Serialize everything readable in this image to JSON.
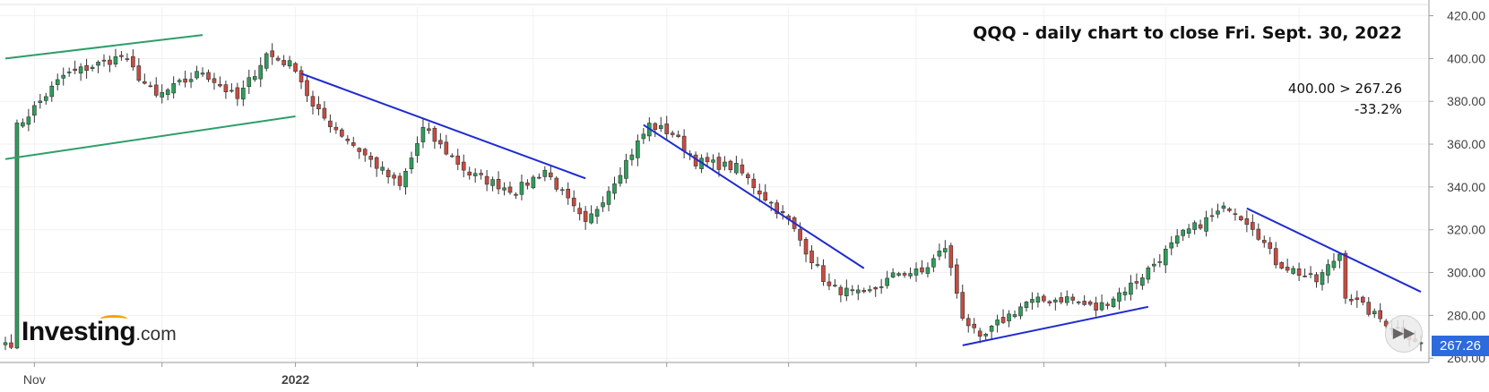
{
  "chart_data": {
    "type": "candlestick",
    "symbol": "QQQ",
    "title": "QQQ - daily chart to close Fri. Sept. 30, 2022",
    "annotations": [
      "400.00 > 267.26",
      "-33.2%"
    ],
    "y_ticks": [
      "420.00",
      "400.00",
      "380.00",
      "360.00",
      "340.00",
      "320.00",
      "300.00",
      "280.00",
      "260.00"
    ],
    "x_ticks": [
      "Nov",
      "2022"
    ],
    "ylim": [
      258,
      424
    ],
    "last_price": "267.26",
    "colors": {
      "up": "#2e9e5a",
      "down": "#c94b40",
      "upper_trendline": "#2e9e6a",
      "trendline": "#1f2bd0",
      "last_badge": "#2d6bdc"
    },
    "anchors": [
      {
        "d": "2021-10-27",
        "v": 368
      },
      {
        "d": "2021-11-08",
        "v": 392
      },
      {
        "d": "2021-11-22",
        "v": 401
      },
      {
        "d": "2021-11-30",
        "v": 382
      },
      {
        "d": "2021-12-10",
        "v": 394
      },
      {
        "d": "2021-12-20",
        "v": 381
      },
      {
        "d": "2021-12-27",
        "v": 402
      },
      {
        "d": "2022-01-03",
        "v": 396
      },
      {
        "d": "2022-01-06",
        "v": 377
      },
      {
        "d": "2022-01-27",
        "v": 340
      },
      {
        "d": "2022-02-02",
        "v": 367
      },
      {
        "d": "2022-02-14",
        "v": 346
      },
      {
        "d": "2022-02-24",
        "v": 338
      },
      {
        "d": "2022-03-03",
        "v": 348
      },
      {
        "d": "2022-03-14",
        "v": 322
      },
      {
        "d": "2022-03-29",
        "v": 369
      },
      {
        "d": "2022-04-04",
        "v": 365
      },
      {
        "d": "2022-04-08",
        "v": 352
      },
      {
        "d": "2022-04-19",
        "v": 349
      },
      {
        "d": "2022-05-02",
        "v": 324
      },
      {
        "d": "2022-05-11",
        "v": 293
      },
      {
        "d": "2022-05-19",
        "v": 289
      },
      {
        "d": "2022-05-27",
        "v": 300
      },
      {
        "d": "2022-06-02",
        "v": 300
      },
      {
        "d": "2022-06-08",
        "v": 312
      },
      {
        "d": "2022-06-13",
        "v": 280
      },
      {
        "d": "2022-06-16",
        "v": 268
      },
      {
        "d": "2022-06-21",
        "v": 276
      },
      {
        "d": "2022-06-28",
        "v": 286
      },
      {
        "d": "2022-07-07",
        "v": 288
      },
      {
        "d": "2022-07-14",
        "v": 283
      },
      {
        "d": "2022-07-25",
        "v": 296
      },
      {
        "d": "2022-08-04",
        "v": 318
      },
      {
        "d": "2022-08-16",
        "v": 331
      },
      {
        "d": "2022-08-22",
        "v": 322
      },
      {
        "d": "2022-08-26",
        "v": 305
      },
      {
        "d": "2022-09-06",
        "v": 296
      },
      {
        "d": "2022-09-12",
        "v": 309
      },
      {
        "d": "2022-09-13",
        "v": 290
      },
      {
        "d": "2022-09-20",
        "v": 280
      },
      {
        "d": "2022-09-30",
        "v": 267.26
      }
    ]
  },
  "brand": {
    "main": "Investing",
    "sub": ".com"
  }
}
